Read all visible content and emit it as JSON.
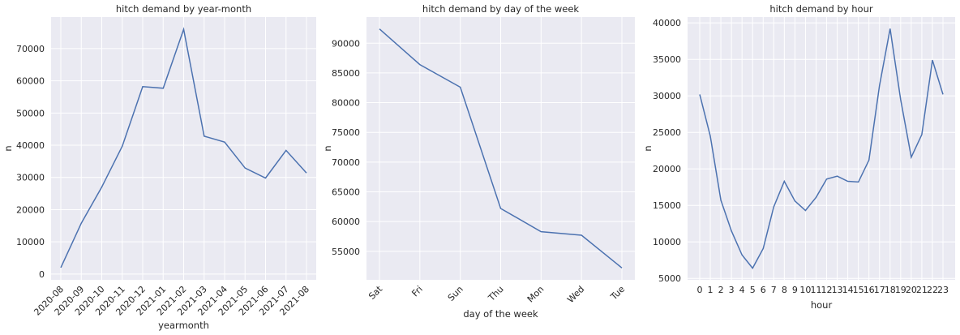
{
  "chart_data": [
    {
      "type": "line",
      "title": "hitch demand by year-month",
      "xlabel": "yearmonth",
      "ylabel": "n",
      "categories": [
        "2020-08",
        "2020-09",
        "2020-10",
        "2020-11",
        "2020-12",
        "2021-01",
        "2021-02",
        "2021-03",
        "2021-04",
        "2021-05",
        "2021-06",
        "2021-07",
        "2021-08"
      ],
      "values": [
        2000,
        15800,
        27000,
        39700,
        58200,
        57700,
        76000,
        42800,
        41000,
        32900,
        29800,
        38400,
        31400
      ],
      "yticks": [
        0,
        10000,
        20000,
        30000,
        40000,
        50000,
        60000,
        70000
      ],
      "ylim": [
        -1800,
        79800
      ],
      "x_tick_rotation": 45,
      "line_color": "#4c72b0",
      "grid": true
    },
    {
      "type": "line",
      "title": "hitch demand by day of the week",
      "xlabel": "day of the week",
      "ylabel": "n",
      "categories": [
        "Sat",
        "Fri",
        "Sun",
        "Thu",
        "Mon",
        "Wed",
        "Tue"
      ],
      "values": [
        92400,
        86400,
        82600,
        62200,
        58300,
        57700,
        52200
      ],
      "yticks": [
        55000,
        60000,
        65000,
        70000,
        75000,
        80000,
        85000,
        90000
      ],
      "ylim": [
        50200,
        94400
      ],
      "x_tick_rotation": 45,
      "line_color": "#4c72b0",
      "grid": true
    },
    {
      "type": "line",
      "title": "hitch demand by hour",
      "xlabel": "hour",
      "ylabel": "n",
      "categories": [
        "0",
        "1",
        "2",
        "3",
        "4",
        "5",
        "6",
        "7",
        "8",
        "9",
        "10",
        "11",
        "12",
        "13",
        "14",
        "15",
        "16",
        "17",
        "18",
        "19",
        "20",
        "21",
        "22",
        "23"
      ],
      "values": [
        30200,
        24500,
        15700,
        11500,
        8200,
        6400,
        9100,
        14800,
        18300,
        15600,
        14300,
        16100,
        18600,
        19000,
        18300,
        18200,
        21200,
        31400,
        39200,
        29500,
        21600,
        24700,
        34900,
        30200
      ],
      "yticks": [
        5000,
        10000,
        15000,
        20000,
        25000,
        30000,
        35000,
        40000
      ],
      "ylim": [
        4800,
        40800
      ],
      "x_tick_rotation": 0,
      "line_color": "#4c72b0",
      "grid": true
    }
  ]
}
